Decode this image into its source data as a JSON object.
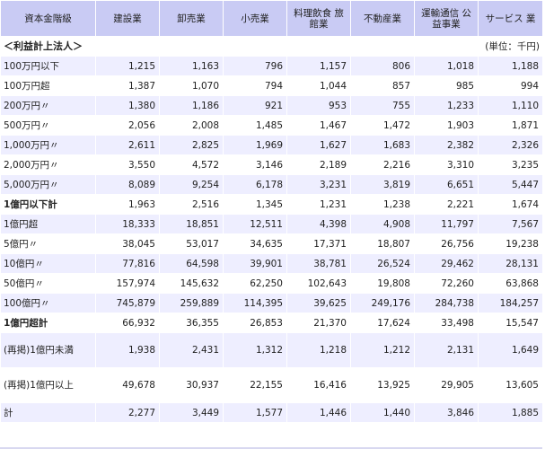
{
  "header": {
    "col0": "資本金階級",
    "cols": [
      "建設業",
      "卸売業",
      "小売業",
      "料理飲食 旅館業",
      "不動産業",
      "運輸通信 公益事業",
      "サービス 業"
    ]
  },
  "section": {
    "title": "＜利益計上法人＞",
    "unit": "(単位：千円)"
  },
  "rows": [
    {
      "label": "100万円以下",
      "values": [
        "1,215",
        "1,163",
        "796",
        "1,157",
        "806",
        "1,018",
        "1,188"
      ]
    },
    {
      "label": "100万円超",
      "values": [
        "1,387",
        "1,070",
        "794",
        "1,044",
        "857",
        "985",
        "994"
      ]
    },
    {
      "label": "200万円〃",
      "values": [
        "1,380",
        "1,186",
        "921",
        "953",
        "755",
        "1,233",
        "1,110"
      ]
    },
    {
      "label": "500万円〃",
      "values": [
        "2,056",
        "2,008",
        "1,485",
        "1,467",
        "1,472",
        "1,903",
        "1,871"
      ]
    },
    {
      "label": "1,000万円〃",
      "values": [
        "2,611",
        "2,825",
        "1,969",
        "1,627",
        "1,683",
        "2,382",
        "2,326"
      ]
    },
    {
      "label": "2,000万円〃",
      "values": [
        "3,550",
        "4,572",
        "3,146",
        "2,189",
        "2,216",
        "3,310",
        "3,235"
      ]
    },
    {
      "label": "5,000万円〃",
      "values": [
        "8,089",
        "9,254",
        "6,178",
        "3,231",
        "3,819",
        "6,651",
        "5,447"
      ]
    },
    {
      "label": "1億円以下計",
      "values": [
        "1,963",
        "2,516",
        "1,345",
        "1,231",
        "1,238",
        "2,221",
        "1,674"
      ]
    },
    {
      "label": "1億円超",
      "values": [
        "18,333",
        "18,851",
        "12,511",
        "4,398",
        "4,908",
        "11,797",
        "7,567"
      ]
    },
    {
      "label": "5億円〃",
      "values": [
        "38,045",
        "53,017",
        "34,635",
        "17,371",
        "18,807",
        "26,756",
        "19,238"
      ]
    },
    {
      "label": "10億円〃",
      "values": [
        "77,816",
        "64,598",
        "39,901",
        "38,781",
        "26,524",
        "29,462",
        "28,131"
      ]
    },
    {
      "label": "50億円〃",
      "values": [
        "157,974",
        "145,632",
        "62,250",
        "102,643",
        "19,808",
        "72,260",
        "63,868"
      ]
    },
    {
      "label": "100億円〃",
      "values": [
        "745,879",
        "259,889",
        "114,395",
        "39,625",
        "249,176",
        "284,738",
        "184,257"
      ]
    },
    {
      "label": "1億円超計",
      "values": [
        "66,932",
        "36,355",
        "26,853",
        "21,370",
        "17,624",
        "33,498",
        "15,547"
      ]
    },
    {
      "label": "(再掲)1億円未満",
      "values": [
        "1,938",
        "2,431",
        "1,312",
        "1,218",
        "1,212",
        "2,131",
        "1,649"
      ]
    },
    {
      "label": "(再掲)1億円以上",
      "values": [
        "49,678",
        "30,937",
        "22,155",
        "16,416",
        "13,925",
        "29,905",
        "13,605"
      ]
    },
    {
      "label": "計",
      "values": [
        "2,277",
        "3,449",
        "1,577",
        "1,446",
        "1,440",
        "3,846",
        "1,885"
      ]
    }
  ]
}
